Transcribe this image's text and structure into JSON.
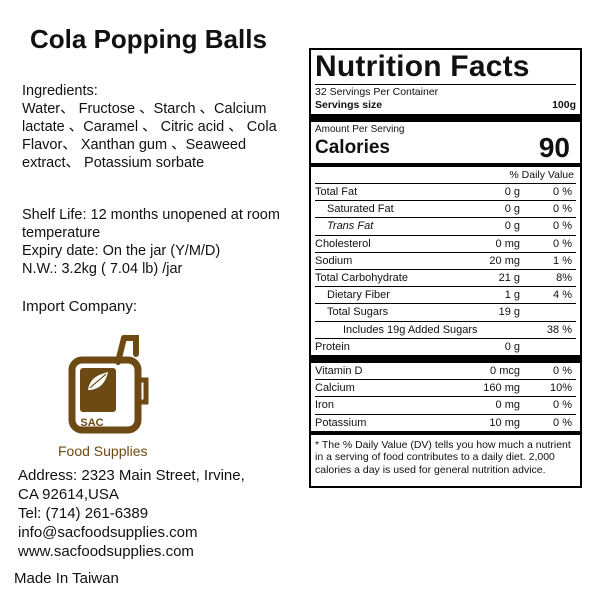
{
  "product": {
    "title": "Cola Popping Balls",
    "ingredients_label": "Ingredients:",
    "ingredients": "Water、 Fructose 、Starch 、Calcium lactate 、Caramel 、 Citric acid 、 Cola Flavor、 Xanthan gum 、Seaweed extract、 Potassium sorbate",
    "shelf_life": "Shelf Life: 12 months unopened at room temperature",
    "expiry": "Expiry date: On the jar (Y/M/D)",
    "net_weight": "N.W.: 3.2kg ( 7.04 lb) /jar",
    "import_label": "Import Company:",
    "logo_letters": "SAC",
    "logo_name": "Food Supplies",
    "address_1": "Address: 2323 Main Street, Irvine,",
    "address_2": "CA 92614,USA",
    "tel": "Tel: (714) 261-6389",
    "email": "info@sacfoodsupplies.com",
    "website": "www.sacfoodsupplies.com",
    "origin": "Made In Taiwan"
  },
  "nutrition": {
    "title": "Nutrition Facts",
    "servings_per_container": "32 Servings Per Container",
    "serving_size_label": "Servings size",
    "serving_size_value": "100g",
    "amount_per_serving": "Amount Per Serving",
    "calories_label": "Calories",
    "calories_value": "90",
    "dv_header": "% Daily Value",
    "rows": [
      {
        "name": "Total Fat",
        "amount": "0 g",
        "dv": "0 %"
      },
      {
        "name": "Saturated Fat",
        "amount": "0 g",
        "dv": "0 %"
      },
      {
        "name": "Trans Fat",
        "amount": "0 g",
        "dv": "0 %"
      },
      {
        "name": "Cholesterol",
        "amount": "0 mg",
        "dv": "0 %"
      },
      {
        "name": "Sodium",
        "amount": "20 mg",
        "dv": "1 %"
      },
      {
        "name": "Total Carbohydrate",
        "amount": "21 g",
        "dv": "8%"
      },
      {
        "name": "Dietary Fiber",
        "amount": "1 g",
        "dv": "4 %"
      },
      {
        "name": "Total Sugars",
        "amount": "19 g",
        "dv": ""
      },
      {
        "name": "Includes 19g Added Sugars",
        "amount": "",
        "dv": "38 %"
      },
      {
        "name": "Protein",
        "amount": "0 g",
        "dv": ""
      }
    ],
    "vitamins": [
      {
        "name": "Vitamin D",
        "amount": "0 mcg",
        "dv": "0 %"
      },
      {
        "name": "Calcium",
        "amount": "160 mg",
        "dv": "10%"
      },
      {
        "name": "Iron",
        "amount": "0 mg",
        "dv": "0 %"
      },
      {
        "name": "Potassium",
        "amount": "10 mg",
        "dv": "0 %"
      }
    ],
    "footnote": "* The % Daily Value (DV) tells you how much a nutrient in a serving of food contributes to a daily diet. 2,000 calories a day is used for general nutrition advice."
  },
  "colors": {
    "logo_brown": "#6d4a14",
    "logo_leaf": "#8a6a2c",
    "text": "#111111"
  }
}
